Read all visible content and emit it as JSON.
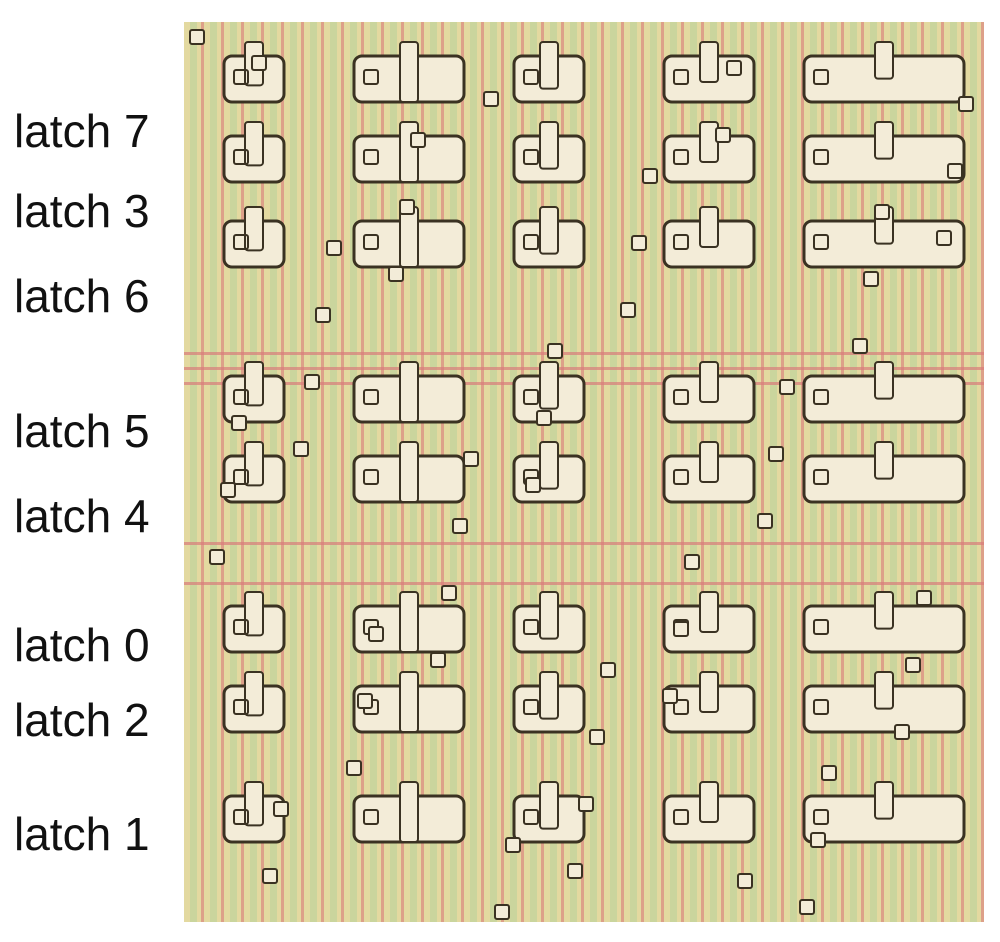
{
  "labels": {
    "latch7": "latch 7",
    "latch3": "latch 3",
    "latch6": "latch 6",
    "latch5": "latch 5",
    "latch4": "latch 4",
    "latch0": "latch 0",
    "latch2": "latch 2",
    "latch1": "latch 1"
  },
  "colors": {
    "background": "#ffffff",
    "label_text": "#111111",
    "substrate": "#e3d9a0",
    "metal": "#f3ecd8",
    "metal_outline": "#3a3222",
    "poly": "#d97a7a",
    "diffusion": "#b7d19a"
  }
}
